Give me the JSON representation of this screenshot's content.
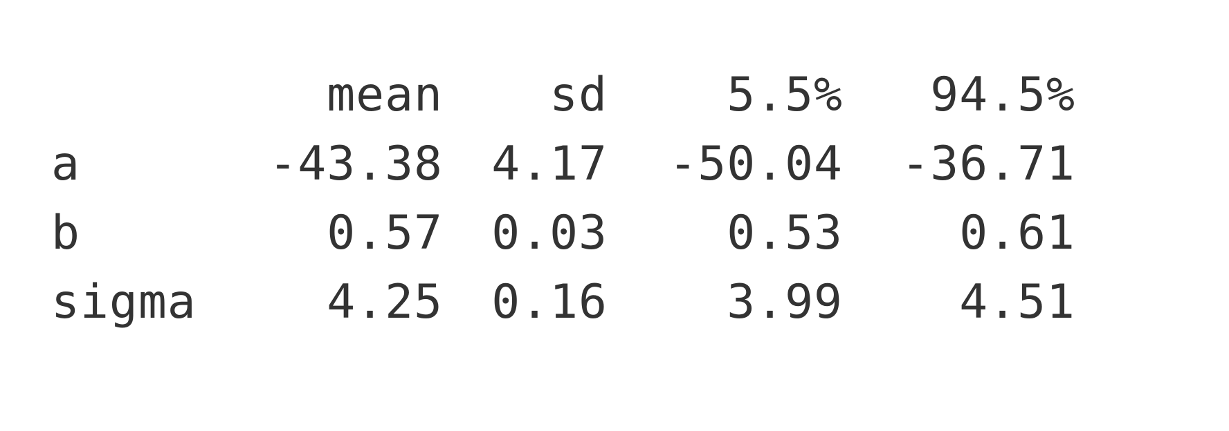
{
  "table": {
    "columns": [
      "",
      "mean",
      "sd",
      "5.5%",
      "94.5%"
    ],
    "rows": [
      {
        "name": "a",
        "mean": "-43.38",
        "sd": "4.17",
        "lo": "-50.04",
        "hi": "-36.71"
      },
      {
        "name": "b",
        "mean": "0.57",
        "sd": "0.03",
        "lo": "0.53",
        "hi": "0.61"
      },
      {
        "name": "sigma",
        "mean": "4.25",
        "sd": "0.16",
        "lo": "3.99",
        "hi": "4.51"
      }
    ]
  }
}
